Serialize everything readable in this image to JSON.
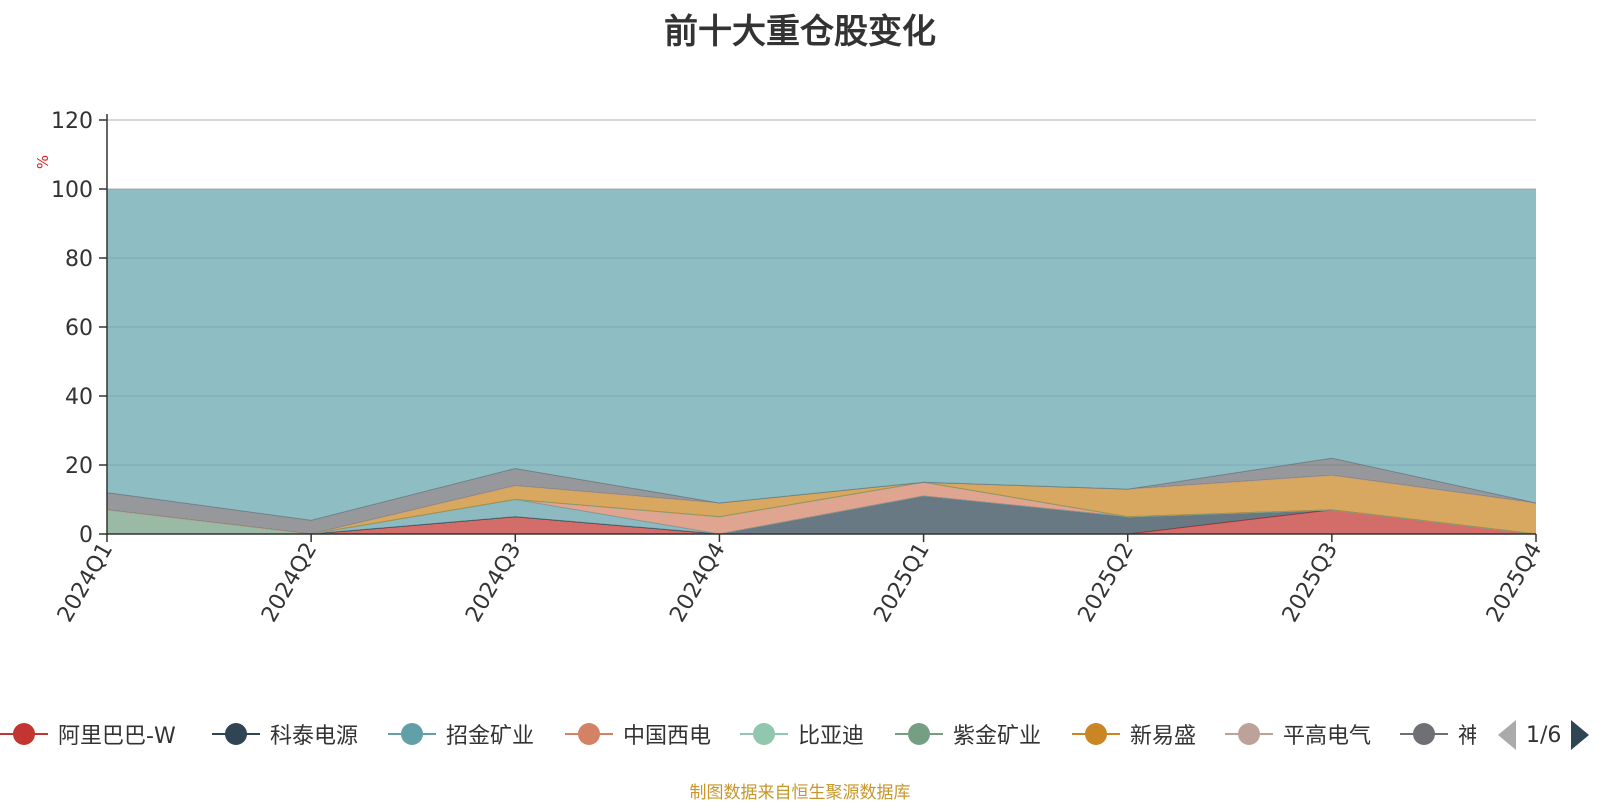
{
  "title": "前十大重仓股变化",
  "source_note": "制图数据来自恒生聚源数据库",
  "pager": {
    "text": "1/6"
  },
  "legend": [
    {
      "name": "阿里巴巴-W",
      "color": "#c23531"
    },
    {
      "name": "科泰电源",
      "color": "#2f4554"
    },
    {
      "name": "招金矿业",
      "color": "#61a0a8"
    },
    {
      "name": "中国西电",
      "color": "#d48265"
    },
    {
      "name": "比亚迪",
      "color": "#91c7ae"
    },
    {
      "name": "紫金矿业",
      "color": "#749f83"
    },
    {
      "name": "新易盛",
      "color": "#ca8622"
    },
    {
      "name": "平高电气",
      "color": "#bda29a"
    },
    {
      "name": "神",
      "color": "#6e7074"
    }
  ],
  "chart_data": {
    "type": "area",
    "stacked": true,
    "title": "前十大重仓股变化",
    "ylabel": "%",
    "ylim": [
      0,
      120
    ],
    "yticks": [
      "0",
      "20",
      "40",
      "60",
      "80",
      "100",
      "120"
    ],
    "categories": [
      "2024Q1",
      "2024Q2",
      "2024Q3",
      "2024Q4",
      "2025Q1",
      "2025Q2",
      "2025Q3",
      "2025Q4"
    ],
    "grid": true,
    "legend_position": "bottom",
    "series": [
      {
        "name": "阿里巴巴-W",
        "color": "#c23531",
        "values": [
          0,
          0,
          5,
          0,
          0,
          0,
          7,
          0
        ]
      },
      {
        "name": "科泰电源",
        "color": "#2f4554",
        "values": [
          0,
          0,
          0,
          0,
          11,
          5,
          0,
          0
        ]
      },
      {
        "name": "招金矿业",
        "color": "#61a0a8",
        "values": [
          0,
          0,
          5,
          0,
          0,
          0,
          0,
          0
        ]
      },
      {
        "name": "中国西电",
        "color": "#d48265",
        "values": [
          0,
          0,
          0,
          5,
          4,
          0,
          0,
          0
        ]
      },
      {
        "name": "比亚迪",
        "color": "#91c7ae",
        "values": [
          0,
          0,
          0,
          0,
          0,
          0,
          0,
          0
        ]
      },
      {
        "name": "紫金矿业",
        "color": "#749f83",
        "values": [
          7,
          0,
          0,
          0,
          0,
          0,
          0,
          0
        ]
      },
      {
        "name": "新易盛",
        "color": "#ca8622",
        "values": [
          0,
          0,
          4,
          4,
          0,
          8,
          10,
          9
        ]
      },
      {
        "name": "平高电气",
        "color": "#bda29a",
        "values": [
          0,
          0,
          0,
          0,
          0,
          0,
          0,
          0
        ]
      },
      {
        "name": "神",
        "color": "#6e7074",
        "values": [
          5,
          4,
          5,
          0,
          0,
          0,
          5,
          0
        ]
      }
    ]
  }
}
